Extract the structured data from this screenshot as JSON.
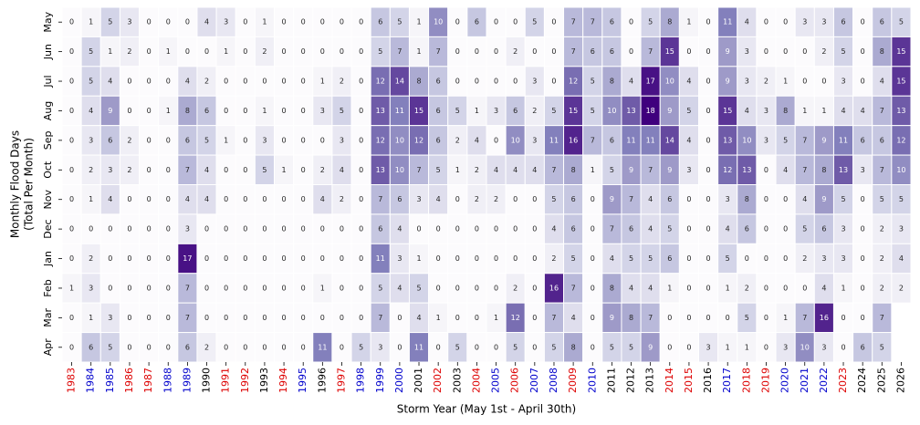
{
  "chart_data": {
    "type": "heatmap",
    "xlabel": "Storm Year (May 1st - April 30th)",
    "ylabel_lines": [
      "Monthly Flood Days",
      "(Total Per Month)"
    ],
    "x": [
      1983,
      1984,
      1985,
      1986,
      1987,
      1988,
      1989,
      1990,
      1991,
      1992,
      1993,
      1994,
      1995,
      1996,
      1997,
      1998,
      1999,
      2000,
      2001,
      2002,
      2003,
      2004,
      2005,
      2006,
      2007,
      2008,
      2009,
      2010,
      2011,
      2012,
      2013,
      2014,
      2015,
      2016,
      2017,
      2018,
      2019,
      2020,
      2021,
      2022,
      2023,
      2024,
      2025,
      2026
    ],
    "xtick_colors": [
      "#dd0000",
      "#0000cc",
      "#0000cc",
      "#dd0000",
      "#dd0000",
      "#0000cc",
      "#0000cc",
      "#000000",
      "#dd0000",
      "#dd0000",
      "#000000",
      "#dd0000",
      "#0000cc",
      "#000000",
      "#dd0000",
      "#0000cc",
      "#0000cc",
      "#0000cc",
      "#000000",
      "#dd0000",
      "#000000",
      "#dd0000",
      "#0000cc",
      "#dd0000",
      "#0000cc",
      "#0000cc",
      "#dd0000",
      "#0000cc",
      "#000000",
      "#000000",
      "#000000",
      "#dd0000",
      "#dd0000",
      "#000000",
      "#0000cc",
      "#dd0000",
      "#dd0000",
      "#0000cc",
      "#0000cc",
      "#0000cc",
      "#dd0000",
      "#000000",
      "#000000",
      "#000000"
    ],
    "y": [
      "May",
      "Jun",
      "Jul",
      "Aug",
      "Sep",
      "Oct",
      "Nov",
      "Dec",
      "Jan",
      "Feb",
      "Mar",
      "Apr"
    ],
    "values": [
      [
        0,
        1,
        5,
        3,
        0,
        0,
        0,
        4,
        3,
        0,
        1,
        0,
        0,
        0,
        0,
        0,
        6,
        5,
        1,
        10,
        0,
        6,
        0,
        0,
        5,
        0,
        7,
        7,
        6,
        0,
        5,
        8,
        1,
        0,
        11,
        4,
        0,
        0,
        3,
        3,
        6,
        0,
        6,
        5
      ],
      [
        0,
        5,
        1,
        2,
        0,
        1,
        0,
        0,
        1,
        0,
        2,
        0,
        0,
        0,
        0,
        0,
        5,
        7,
        1,
        7,
        0,
        0,
        0,
        2,
        0,
        0,
        7,
        6,
        6,
        0,
        7,
        15,
        0,
        0,
        9,
        3,
        0,
        0,
        0,
        2,
        5,
        0,
        8,
        15
      ],
      [
        0,
        5,
        4,
        0,
        0,
        0,
        4,
        2,
        0,
        0,
        0,
        0,
        0,
        1,
        2,
        0,
        12,
        14,
        8,
        6,
        0,
        0,
        0,
        0,
        3,
        0,
        12,
        5,
        8,
        4,
        17,
        10,
        4,
        0,
        9,
        3,
        2,
        1,
        0,
        0,
        3,
        0,
        4,
        15
      ],
      [
        0,
        4,
        9,
        0,
        0,
        1,
        8,
        6,
        0,
        0,
        1,
        0,
        0,
        3,
        5,
        0,
        13,
        11,
        15,
        6,
        5,
        1,
        3,
        6,
        2,
        5,
        15,
        5,
        10,
        13,
        18,
        9,
        5,
        0,
        15,
        4,
        3,
        8,
        1,
        1,
        4,
        4,
        7,
        13
      ],
      [
        0,
        3,
        6,
        2,
        0,
        0,
        6,
        5,
        1,
        0,
        3,
        0,
        0,
        0,
        3,
        0,
        12,
        10,
        12,
        6,
        2,
        4,
        0,
        10,
        3,
        11,
        16,
        7,
        6,
        11,
        11,
        14,
        4,
        0,
        13,
        10,
        3,
        5,
        7,
        9,
        11,
        6,
        6,
        12
      ],
      [
        0,
        2,
        3,
        2,
        0,
        0,
        7,
        4,
        0,
        0,
        5,
        1,
        0,
        2,
        4,
        0,
        13,
        10,
        7,
        5,
        1,
        2,
        4,
        4,
        4,
        7,
        8,
        1,
        5,
        9,
        7,
        9,
        3,
        0,
        12,
        13,
        0,
        4,
        7,
        8,
        13,
        3,
        7,
        10
      ],
      [
        0,
        1,
        4,
        0,
        0,
        0,
        4,
        4,
        0,
        0,
        0,
        0,
        0,
        4,
        2,
        0,
        7,
        6,
        3,
        4,
        0,
        2,
        2,
        0,
        0,
        5,
        6,
        0,
        9,
        7,
        4,
        6,
        0,
        0,
        3,
        8,
        0,
        0,
        4,
        9,
        5,
        0,
        5,
        5
      ],
      [
        0,
        0,
        0,
        0,
        0,
        0,
        3,
        0,
        0,
        0,
        0,
        0,
        0,
        0,
        0,
        0,
        6,
        4,
        0,
        0,
        0,
        0,
        0,
        0,
        0,
        4,
        6,
        0,
        7,
        6,
        4,
        5,
        0,
        0,
        4,
        6,
        0,
        0,
        5,
        6,
        3,
        0,
        2,
        3
      ],
      [
        0,
        2,
        0,
        0,
        0,
        0,
        17,
        0,
        0,
        0,
        0,
        0,
        0,
        0,
        0,
        0,
        11,
        3,
        1,
        0,
        0,
        0,
        0,
        0,
        0,
        2,
        5,
        0,
        4,
        5,
        5,
        6,
        0,
        0,
        5,
        0,
        0,
        0,
        2,
        3,
        3,
        0,
        2,
        4
      ],
      [
        1,
        3,
        0,
        0,
        0,
        0,
        7,
        0,
        0,
        0,
        0,
        0,
        0,
        1,
        0,
        0,
        5,
        4,
        5,
        0,
        0,
        0,
        0,
        2,
        0,
        16,
        7,
        0,
        8,
        4,
        4,
        1,
        0,
        0,
        1,
        2,
        0,
        0,
        0,
        4,
        1,
        0,
        2,
        2
      ],
      [
        0,
        1,
        3,
        0,
        0,
        0,
        7,
        0,
        0,
        0,
        0,
        0,
        0,
        0,
        0,
        0,
        7,
        0,
        4,
        1,
        0,
        0,
        1,
        12,
        0,
        7,
        4,
        0,
        9,
        8,
        7,
        0,
        0,
        0,
        0,
        5,
        0,
        1,
        7,
        16,
        0,
        0,
        7,
        null
      ],
      [
        0,
        6,
        5,
        0,
        0,
        0,
        6,
        2,
        0,
        0,
        0,
        0,
        0,
        11,
        0,
        5,
        3,
        0,
        11,
        0,
        5,
        0,
        0,
        5,
        0,
        5,
        8,
        0,
        5,
        5,
        9,
        0,
        0,
        3,
        1,
        1,
        0,
        3,
        10,
        3,
        0,
        6,
        5,
        null
      ]
    ],
    "clim": [
      0,
      18
    ],
    "colormap": [
      "#fcfbfd",
      "#efedf5",
      "#dadaeb",
      "#bcbddc",
      "#9e9ac8",
      "#807dba",
      "#6a51a3",
      "#54278f",
      "#3f007d"
    ]
  }
}
